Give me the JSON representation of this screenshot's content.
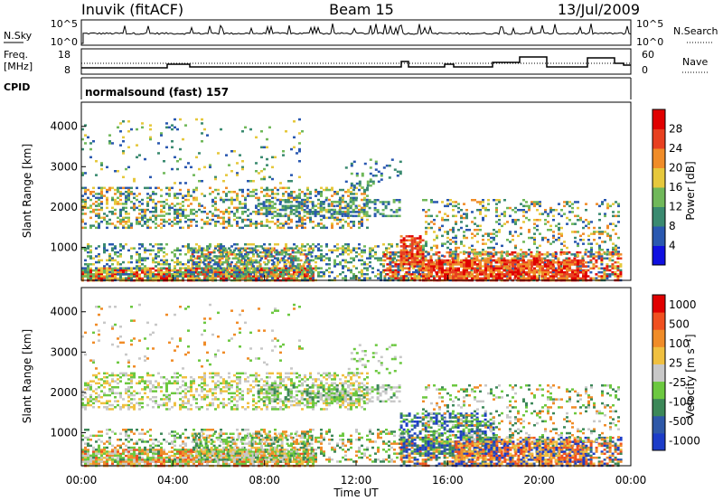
{
  "header": {
    "station": "Inuvik (fitACF)",
    "beam": "Beam 15",
    "date": "13/Jul/2009"
  },
  "top_panels": {
    "nsky": {
      "left_label": "N.Sky",
      "left_ticks": [
        "10^5",
        "10^0"
      ],
      "right_ticks": [
        "10^5",
        "10^0"
      ],
      "right_label": "N.Search"
    },
    "freq": {
      "left_label_1": "Freq.",
      "left_label_2": "[MHz]",
      "left_ticks": [
        "18",
        "8"
      ],
      "right_ticks": [
        "60",
        "0"
      ],
      "right_label": "Nave"
    },
    "cpid": {
      "left_label": "CPID",
      "value": "normalsound (fast) 157"
    }
  },
  "chart_data": [
    {
      "type": "heatmap",
      "title": "",
      "ylabel": "Slant Range [km]",
      "xlabel": "",
      "ylim": [
        180,
        4600
      ],
      "yticks": [
        "1000",
        "2000",
        "3000",
        "4000"
      ],
      "colorbar_label": "Power [dB]",
      "colorbar_ticks": [
        "4",
        "8",
        "12",
        "16",
        "20",
        "24",
        "28"
      ],
      "colors": [
        "#1010e0",
        "#2a58b0",
        "#3a8a70",
        "#70b85a",
        "#e6c83c",
        "#f08c28",
        "#e84020",
        "#e00000"
      ]
    },
    {
      "type": "heatmap",
      "title": "",
      "ylabel": "Slant Range [km]",
      "xlabel": "Time UT",
      "ylim": [
        180,
        4600
      ],
      "yticks": [
        "1000",
        "2000",
        "3000",
        "4000"
      ],
      "xticks": [
        "00:00",
        "04:00",
        "08:00",
        "12:00",
        "16:00",
        "20:00",
        "00:00"
      ],
      "colorbar_label": "Velocity [m s⁻¹]",
      "colorbar_ticks": [
        "1000",
        "500",
        "100",
        "25",
        "-25",
        "-100",
        "-500",
        "-1000"
      ],
      "colors": [
        "#1c3cc8",
        "#2e58a8",
        "#3c8858",
        "#6cc840",
        "#c8c8c8",
        "#f0c040",
        "#f08c28",
        "#f05020",
        "#e00000"
      ]
    }
  ]
}
